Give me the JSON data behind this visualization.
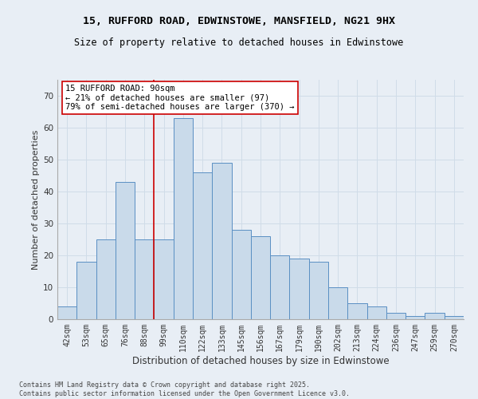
{
  "title_line1": "15, RUFFORD ROAD, EDWINSTOWE, MANSFIELD, NG21 9HX",
  "title_line2": "Size of property relative to detached houses in Edwinstowe",
  "xlabel": "Distribution of detached houses by size in Edwinstowe",
  "ylabel": "Number of detached properties",
  "categories": [
    "42sqm",
    "53sqm",
    "65sqm",
    "76sqm",
    "88sqm",
    "99sqm",
    "110sqm",
    "122sqm",
    "133sqm",
    "145sqm",
    "156sqm",
    "167sqm",
    "179sqm",
    "190sqm",
    "202sqm",
    "213sqm",
    "224sqm",
    "236sqm",
    "247sqm",
    "259sqm",
    "270sqm"
  ],
  "values": [
    4,
    18,
    25,
    43,
    25,
    25,
    63,
    46,
    49,
    28,
    26,
    20,
    19,
    18,
    10,
    5,
    4,
    2,
    1,
    2,
    1
  ],
  "bar_color": "#c9daea",
  "bar_edge_color": "#5a8fc3",
  "grid_color": "#d0dce8",
  "background_color": "#e8eef5",
  "annotation_text": "15 RUFFORD ROAD: 90sqm\n← 21% of detached houses are smaller (97)\n79% of semi-detached houses are larger (370) →",
  "annotation_box_color": "#ffffff",
  "annotation_box_edge": "#cc0000",
  "vline_x_index": 4.5,
  "vline_color": "#cc0000",
  "ylim_max": 75,
  "yticks": [
    0,
    10,
    20,
    30,
    40,
    50,
    60,
    70
  ],
  "footnote": "Contains HM Land Registry data © Crown copyright and database right 2025.\nContains public sector information licensed under the Open Government Licence v3.0.",
  "title_fontsize": 9.5,
  "subtitle_fontsize": 8.5,
  "ylabel_fontsize": 8,
  "xlabel_fontsize": 8.5,
  "tick_fontsize": 7,
  "annotation_fontsize": 7.5,
  "footnote_fontsize": 6
}
